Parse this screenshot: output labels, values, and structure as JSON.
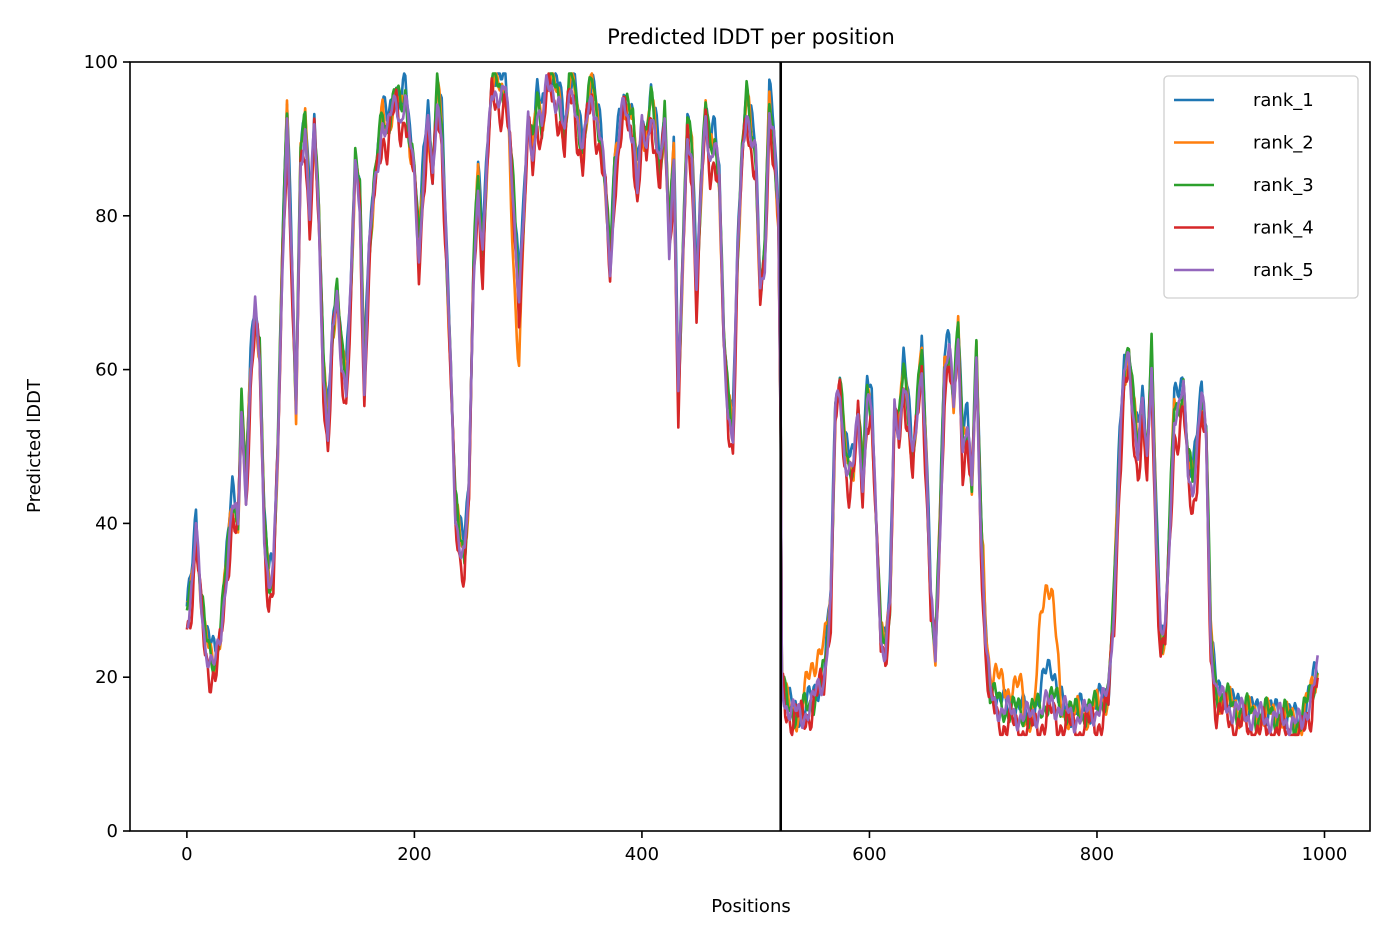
{
  "chart_data": {
    "type": "line",
    "title": "Predicted lDDT per position",
    "xlabel": "Positions",
    "ylabel": "Predicted lDDT",
    "xlim": [
      -50,
      1040
    ],
    "ylim": [
      0,
      100
    ],
    "xticks": [
      0,
      200,
      400,
      600,
      800,
      1000
    ],
    "yticks": [
      0,
      20,
      40,
      60,
      80,
      100
    ],
    "grid": false,
    "legend_position": "top-right",
    "vertical_line_x": 522,
    "base_profile": [
      [
        0,
        28
      ],
      [
        5,
        33
      ],
      [
        8,
        40
      ],
      [
        12,
        31
      ],
      [
        16,
        25
      ],
      [
        20,
        23
      ],
      [
        25,
        22
      ],
      [
        30,
        26
      ],
      [
        35,
        35
      ],
      [
        40,
        43
      ],
      [
        45,
        40
      ],
      [
        48,
        55
      ],
      [
        52,
        45
      ],
      [
        56,
        60
      ],
      [
        60,
        68
      ],
      [
        64,
        62
      ],
      [
        68,
        40
      ],
      [
        72,
        32
      ],
      [
        76,
        34
      ],
      [
        80,
        50
      ],
      [
        84,
        75
      ],
      [
        88,
        93
      ],
      [
        92,
        75
      ],
      [
        96,
        55
      ],
      [
        100,
        88
      ],
      [
        104,
        92
      ],
      [
        108,
        80
      ],
      [
        112,
        92
      ],
      [
        116,
        80
      ],
      [
        120,
        60
      ],
      [
        124,
        52
      ],
      [
        128,
        65
      ],
      [
        132,
        70
      ],
      [
        136,
        62
      ],
      [
        140,
        58
      ],
      [
        144,
        70
      ],
      [
        148,
        87
      ],
      [
        152,
        83
      ],
      [
        156,
        58
      ],
      [
        160,
        75
      ],
      [
        164,
        83
      ],
      [
        168,
        88
      ],
      [
        172,
        93
      ],
      [
        176,
        91
      ],
      [
        180,
        94
      ],
      [
        184,
        96
      ],
      [
        188,
        93
      ],
      [
        192,
        96
      ],
      [
        196,
        90
      ],
      [
        200,
        86
      ],
      [
        204,
        75
      ],
      [
        208,
        86
      ],
      [
        212,
        93
      ],
      [
        216,
        85
      ],
      [
        220,
        96
      ],
      [
        224,
        92
      ],
      [
        228,
        76
      ],
      [
        232,
        60
      ],
      [
        236,
        42
      ],
      [
        240,
        38
      ],
      [
        244,
        36
      ],
      [
        248,
        45
      ],
      [
        252,
        73
      ],
      [
        256,
        85
      ],
      [
        260,
        75
      ],
      [
        264,
        88
      ],
      [
        268,
        97
      ],
      [
        272,
        97
      ],
      [
        276,
        96
      ],
      [
        280,
        97
      ],
      [
        284,
        90
      ],
      [
        288,
        80
      ],
      [
        292,
        70
      ],
      [
        296,
        80
      ],
      [
        300,
        93
      ],
      [
        304,
        88
      ],
      [
        308,
        95
      ],
      [
        312,
        92
      ],
      [
        316,
        97
      ],
      [
        320,
        98
      ],
      [
        324,
        96
      ],
      [
        328,
        95
      ],
      [
        332,
        90
      ],
      [
        336,
        97
      ],
      [
        340,
        97
      ],
      [
        344,
        92
      ],
      [
        348,
        88
      ],
      [
        352,
        94
      ],
      [
        356,
        97
      ],
      [
        360,
        93
      ],
      [
        364,
        90
      ],
      [
        368,
        84
      ],
      [
        372,
        73
      ],
      [
        376,
        86
      ],
      [
        380,
        91
      ],
      [
        384,
        95
      ],
      [
        388,
        93
      ],
      [
        392,
        92
      ],
      [
        396,
        84
      ],
      [
        400,
        92
      ],
      [
        404,
        89
      ],
      [
        408,
        95
      ],
      [
        412,
        91
      ],
      [
        416,
        86
      ],
      [
        420,
        93
      ],
      [
        424,
        77
      ],
      [
        428,
        88
      ],
      [
        432,
        56
      ],
      [
        436,
        75
      ],
      [
        440,
        92
      ],
      [
        444,
        88
      ],
      [
        448,
        70
      ],
      [
        452,
        84
      ],
      [
        456,
        94
      ],
      [
        460,
        88
      ],
      [
        464,
        90
      ],
      [
        468,
        85
      ],
      [
        472,
        64
      ],
      [
        476,
        55
      ],
      [
        480,
        52
      ],
      [
        484,
        75
      ],
      [
        488,
        88
      ],
      [
        492,
        95
      ],
      [
        496,
        91
      ],
      [
        500,
        88
      ],
      [
        504,
        70
      ],
      [
        508,
        75
      ],
      [
        512,
        95
      ],
      [
        516,
        90
      ],
      [
        520,
        80
      ],
      [
        522,
        52
      ],
      [
        523,
        20
      ],
      [
        526,
        17
      ],
      [
        530,
        16
      ],
      [
        540,
        15
      ],
      [
        550,
        17
      ],
      [
        560,
        20
      ],
      [
        566,
        30
      ],
      [
        570,
        55
      ],
      [
        574,
        58
      ],
      [
        578,
        50
      ],
      [
        582,
        47
      ],
      [
        586,
        48
      ],
      [
        590,
        55
      ],
      [
        594,
        45
      ],
      [
        598,
        57
      ],
      [
        602,
        55
      ],
      [
        606,
        40
      ],
      [
        610,
        25
      ],
      [
        614,
        24
      ],
      [
        618,
        30
      ],
      [
        622,
        55
      ],
      [
        626,
        52
      ],
      [
        630,
        60
      ],
      [
        634,
        55
      ],
      [
        638,
        48
      ],
      [
        642,
        55
      ],
      [
        646,
        62
      ],
      [
        650,
        48
      ],
      [
        654,
        30
      ],
      [
        658,
        23
      ],
      [
        662,
        40
      ],
      [
        666,
        60
      ],
      [
        670,
        63
      ],
      [
        674,
        56
      ],
      [
        678,
        65
      ],
      [
        682,
        50
      ],
      [
        686,
        53
      ],
      [
        690,
        45
      ],
      [
        694,
        62
      ],
      [
        698,
        40
      ],
      [
        702,
        25
      ],
      [
        706,
        18
      ],
      [
        716,
        16
      ],
      [
        740,
        15
      ],
      [
        760,
        17
      ],
      [
        780,
        15
      ],
      [
        800,
        16
      ],
      [
        810,
        18
      ],
      [
        815,
        30
      ],
      [
        820,
        50
      ],
      [
        824,
        60
      ],
      [
        828,
        62
      ],
      [
        832,
        55
      ],
      [
        836,
        50
      ],
      [
        840,
        56
      ],
      [
        844,
        48
      ],
      [
        848,
        62
      ],
      [
        852,
        40
      ],
      [
        856,
        25
      ],
      [
        860,
        26
      ],
      [
        864,
        40
      ],
      [
        868,
        55
      ],
      [
        872,
        55
      ],
      [
        876,
        58
      ],
      [
        880,
        48
      ],
      [
        884,
        45
      ],
      [
        888,
        50
      ],
      [
        892,
        57
      ],
      [
        896,
        52
      ],
      [
        900,
        25
      ],
      [
        905,
        18
      ],
      [
        920,
        16
      ],
      [
        940,
        15
      ],
      [
        960,
        15
      ],
      [
        980,
        14
      ],
      [
        990,
        19
      ],
      [
        994,
        21
      ]
    ],
    "series": [
      {
        "name": "rank_1",
        "color": "#1f77b4",
        "offset": 1.2,
        "amp": 1.6,
        "phase": 0.0,
        "bump": 0
      },
      {
        "name": "rank_2",
        "color": "#ff7f0e",
        "offset": 0.0,
        "amp": 1.8,
        "phase": 1.3,
        "bump": 1
      },
      {
        "name": "rank_3",
        "color": "#2ca02c",
        "offset": 0.4,
        "amp": 1.7,
        "phase": 2.1,
        "bump": 0
      },
      {
        "name": "rank_4",
        "color": "#d62728",
        "offset": -2.0,
        "amp": 2.2,
        "phase": 3.4,
        "bump": 0
      },
      {
        "name": "rank_5",
        "color": "#9467bd",
        "offset": -0.6,
        "amp": 1.5,
        "phase": 4.6,
        "bump": 0
      }
    ]
  }
}
